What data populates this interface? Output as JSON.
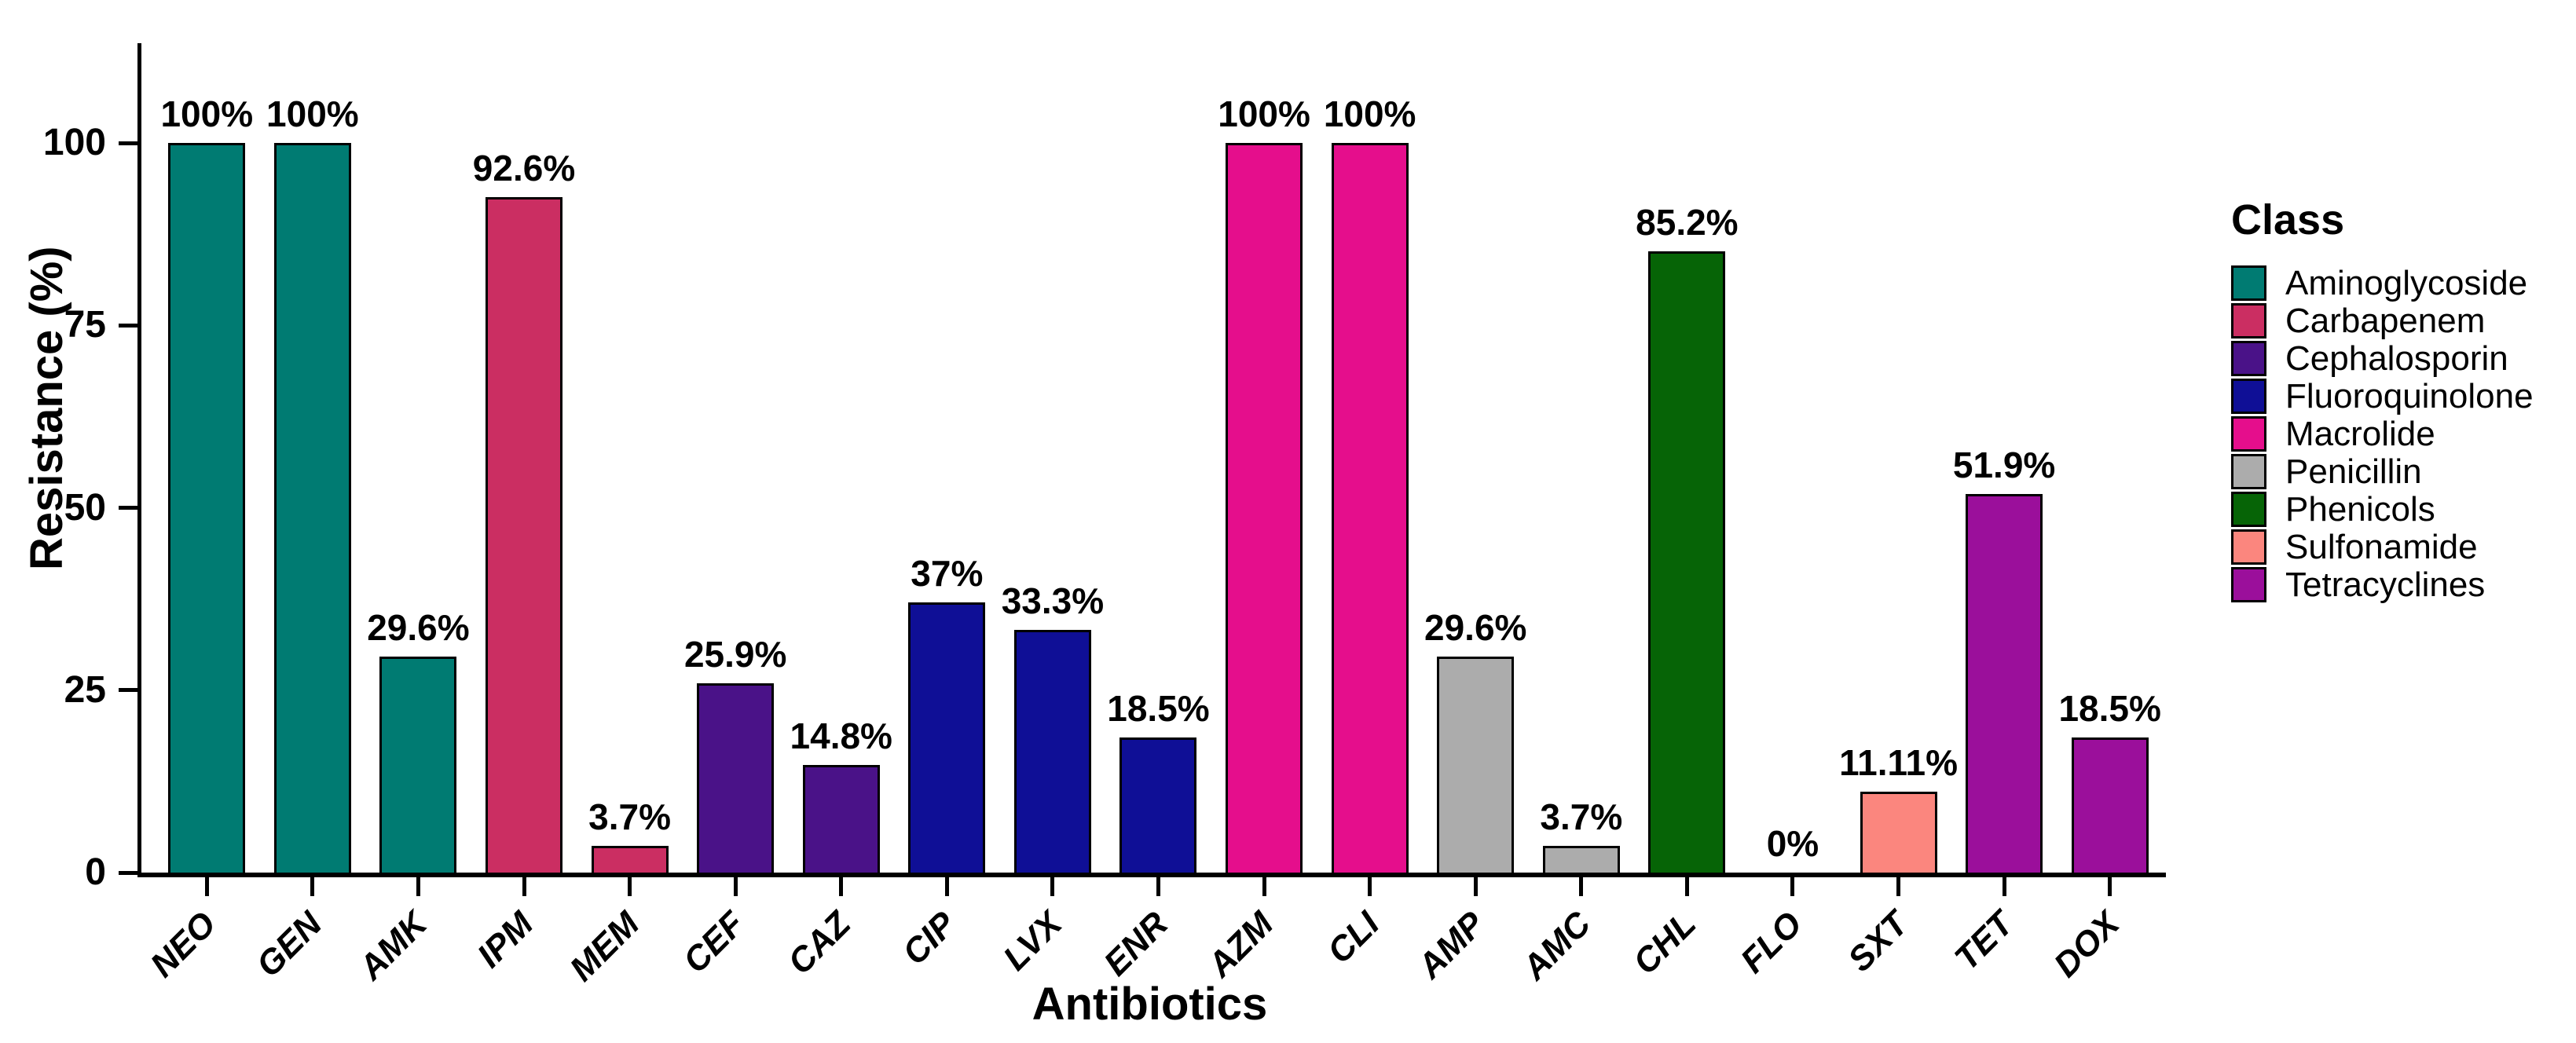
{
  "chart_data": {
    "type": "bar",
    "xlabel": "Antibiotics",
    "ylabel": "Resistance (%)",
    "ylim": [
      0,
      100
    ],
    "yticks": [
      0,
      25,
      50,
      75,
      100
    ],
    "grid": false,
    "categories": [
      "NEO",
      "GEN",
      "AMK",
      "IPM",
      "MEM",
      "CEF",
      "CAZ",
      "CIP",
      "LVX",
      "ENR",
      "AZM",
      "CLI",
      "AMP",
      "AMC",
      "CHL",
      "FLO",
      "SXT",
      "TET",
      "DOX"
    ],
    "values": [
      100,
      100,
      29.6,
      92.6,
      3.7,
      25.9,
      14.8,
      37,
      33.3,
      18.5,
      100,
      100,
      29.6,
      3.7,
      85.2,
      0,
      11.11,
      51.9,
      18.5
    ],
    "value_labels": [
      "100%",
      "100%",
      "29.6%",
      "92.6%",
      "3.7%",
      "25.9%",
      "14.8%",
      "37%",
      "33.3%",
      "18.5%",
      "100%",
      "100%",
      "29.6%",
      "3.7%",
      "85.2%",
      "0%",
      "11.11%",
      "51.9%",
      "18.5%"
    ],
    "bar_classes": [
      "Aminoglycoside",
      "Aminoglycoside",
      "Aminoglycoside",
      "Carbapenem",
      "Carbapenem",
      "Cephalosporin",
      "Cephalosporin",
      "Fluoroquinolone",
      "Fluoroquinolone",
      "Fluoroquinolone",
      "Macrolide",
      "Macrolide",
      "Penicillin",
      "Penicillin",
      "Phenicols",
      "Phenicols",
      "Sulfonamide",
      "Tetracyclines",
      "Tetracyclines"
    ],
    "legend": {
      "title": "Class",
      "position": "right",
      "entries": [
        {
          "label": "Aminoglycoside",
          "color": "#007B72"
        },
        {
          "label": "Carbapenem",
          "color": "#CB2E62"
        },
        {
          "label": "Cephalosporin",
          "color": "#4A1288"
        },
        {
          "label": "Fluoroquinolone",
          "color": "#0F0F96"
        },
        {
          "label": "Macrolide",
          "color": "#E50E8C"
        },
        {
          "label": "Penicillin",
          "color": "#ACACAC"
        },
        {
          "label": "Phenicols",
          "color": "#066406"
        },
        {
          "label": "Sulfonamide",
          "color": "#FB867E"
        },
        {
          "label": "Tetracyclines",
          "color": "#9B0F9B"
        }
      ]
    },
    "axis_color": "#000000",
    "background_color": "#FFFFFF"
  }
}
